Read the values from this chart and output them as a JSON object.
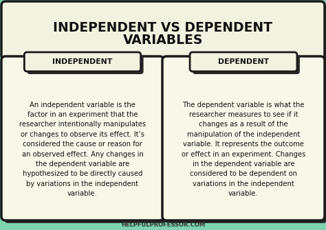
{
  "bg_color": "#7dd4b0",
  "title_bg_color": "#f2f2e0",
  "title_text_line1": "INDEPENDENT VS DEPENDENT",
  "title_text_line2": "VARIABLES",
  "title_font_size": 13.5,
  "title_font_color": "#111111",
  "card_bg_color": "#f8f8e8",
  "card_border_color": "#1a1a1a",
  "card_shadow_color": "#2a2a2a",
  "header_bg_color": "#f2f2e0",
  "header_border_color": "#1a1a1a",
  "left_header": "INDEPENDENT",
  "right_header": "DEPENDENT",
  "header_font_size": 7.8,
  "left_body": "An independent variable is the\nfactor in an experiment that the\nresearcher intentionally manipulates\nor changes to observe its effect. It’s\nconsidered the cause or reason for\nan observed effect. Any changes in\nthe dependent variable are\nhypothesized to be directly caused\nby variations in the independent\nvariable.",
  "right_body": "The dependent variable is what the\nresearcher measures to see if it\nchanges as a result of the\nmanipulation of the independent\nvariable. It represents the outcome\nor effect in an experiment. Changes\nin the dependent variable are\nconsidered to be dependent on\nvariations in the independent\nvariable.",
  "body_font_size": 7.2,
  "body_font_color": "#111111",
  "footer_text": "HELPFULPROFESSOR.COM",
  "footer_font_size": 6.0,
  "footer_font_color": "#333333",
  "fig_width": 4.74,
  "fig_height": 3.35,
  "dpi": 100
}
